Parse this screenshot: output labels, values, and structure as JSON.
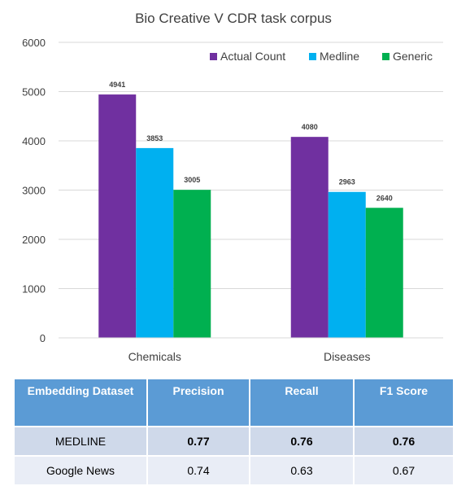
{
  "chart_data": {
    "type": "bar",
    "title": "Bio Creative V CDR task corpus",
    "categories": [
      "Chemicals",
      "Diseases"
    ],
    "series": [
      {
        "name": "Actual Count",
        "color": "#7030a0",
        "values": [
          4941,
          4080
        ]
      },
      {
        "name": "Medline",
        "color": "#00b0f0",
        "values": [
          3853,
          2963
        ]
      },
      {
        "name": "Generic",
        "color": "#00b050",
        "values": [
          3005,
          2640
        ]
      }
    ],
    "yticks": [
      0,
      1000,
      2000,
      3000,
      4000,
      5000,
      6000
    ],
    "ylim": [
      0,
      6000
    ],
    "grid": true,
    "legend_position": "top-right",
    "xlabel": "",
    "ylabel": ""
  },
  "table": {
    "headers": [
      "Embedding Dataset",
      "Precision",
      "Recall",
      "F1 Score"
    ],
    "rows": [
      {
        "cells": [
          "MEDLINE",
          "0.77",
          "0.76",
          "0.76"
        ],
        "bold": [
          false,
          true,
          true,
          true
        ]
      },
      {
        "cells": [
          "Google News",
          "0.74",
          "0.63",
          "0.67"
        ],
        "bold": [
          false,
          false,
          false,
          false
        ]
      }
    ]
  }
}
